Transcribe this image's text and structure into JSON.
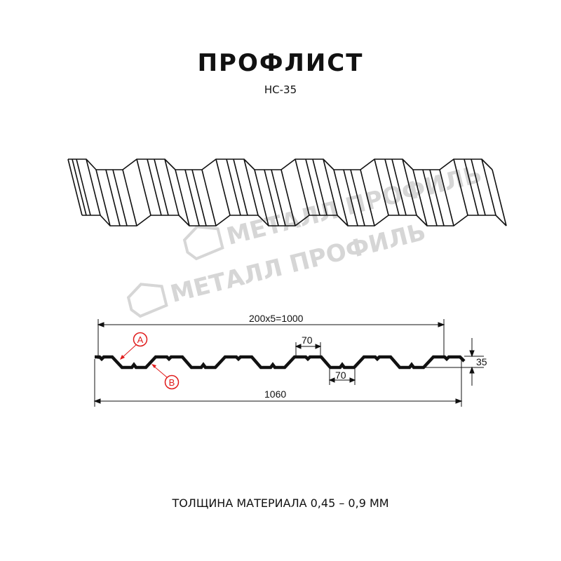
{
  "title": "ПРОФЛИСТ",
  "subtitle": "НС-35",
  "watermark": "МЕТАЛЛ ПРОФИЛЬ",
  "dimensions": {
    "useful_width": "200x5=1000",
    "full_width": "1060",
    "top_rib": "70",
    "bottom_rib": "70",
    "height": "35"
  },
  "callouts": {
    "a": "A",
    "b": "B"
  },
  "thickness": "ТОЛЩИНА МАТЕРИАЛА 0,45 – 0,9 ММ",
  "colors": {
    "line": "#111111",
    "callout": "#e01a1a",
    "watermark": "#d6d6d6"
  }
}
